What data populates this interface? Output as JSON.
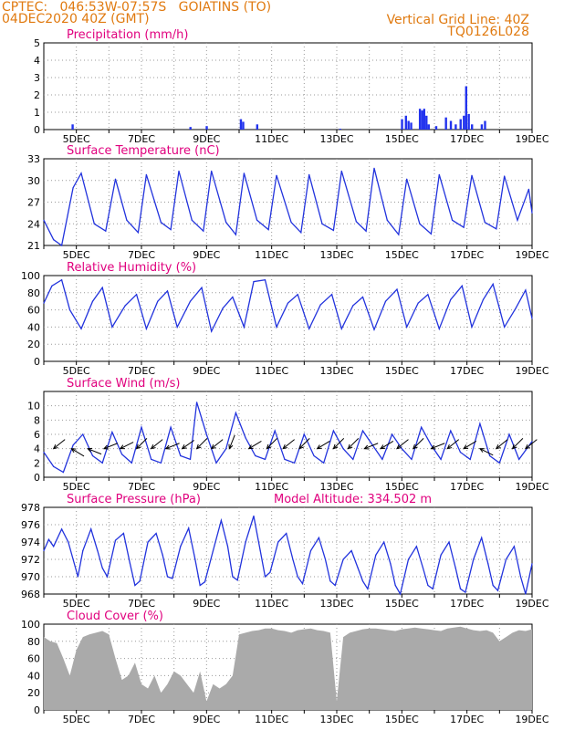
{
  "header": {
    "left_line1": "CPTEC:   046:53W-07:57S   GOIATINS (TO)",
    "left_line2": "04DEC2020 40Z (GMT)",
    "right_line1": "Vertical Grid Line: 40Z",
    "right_line2": "TQ0126L028"
  },
  "colors": {
    "header": "#e07a10",
    "panel_title": "#e0007e",
    "line": "#2233dd",
    "bars": "#2233ee",
    "cloud": "#aaaaaa",
    "grid": "#999999"
  },
  "x_axis": {
    "labels": [
      "5DEC",
      "7DEC",
      "9DEC",
      "11DEC",
      "13DEC",
      "15DEC",
      "17DEC",
      "19DEC"
    ]
  },
  "chart_data": [
    {
      "type": "bar",
      "title": "Precipitation (mm/h)",
      "ylim": [
        0,
        5
      ],
      "yticks": [
        0,
        1,
        2,
        3,
        4,
        5
      ],
      "x_days": [
        4.88,
        8.5,
        9.0,
        10.05,
        10.12,
        10.55,
        13.1,
        15.0,
        15.12,
        15.2,
        15.28,
        15.55,
        15.62,
        15.68,
        15.75,
        15.82,
        16.05,
        16.35,
        16.5,
        16.65,
        16.8,
        16.9,
        16.97,
        17.05,
        17.15,
        17.45,
        17.55
      ],
      "values": [
        0.3,
        0.15,
        0.2,
        0.6,
        0.45,
        0.3,
        0.05,
        0.6,
        0.8,
        0.5,
        0.4,
        1.2,
        1.1,
        1.2,
        0.8,
        0.3,
        0.2,
        0.7,
        0.5,
        0.3,
        0.6,
        0.8,
        2.5,
        0.9,
        0.3,
        0.3,
        0.5
      ]
    },
    {
      "type": "line",
      "title": "Surface Temperature (nC)",
      "ylim": [
        21,
        33
      ],
      "yticks": [
        21,
        24,
        27,
        30,
        33
      ],
      "x_days": [
        4.0,
        4.3,
        4.55,
        4.9,
        5.15,
        5.55,
        5.9,
        6.2,
        6.55,
        6.9,
        7.15,
        7.6,
        7.9,
        8.15,
        8.55,
        8.9,
        9.15,
        9.6,
        9.9,
        10.15,
        10.55,
        10.9,
        11.15,
        11.6,
        11.9,
        12.15,
        12.55,
        12.9,
        13.15,
        13.6,
        13.9,
        14.15,
        14.55,
        14.9,
        15.15,
        15.55,
        15.9,
        16.15,
        16.55,
        16.9,
        17.15,
        17.55,
        17.9,
        18.15,
        18.55,
        18.9,
        19.0
      ],
      "values": [
        24.5,
        21.8,
        21.0,
        29.0,
        31.0,
        24.0,
        23.0,
        30.2,
        24.5,
        22.8,
        30.8,
        24.2,
        23.2,
        31.3,
        24.5,
        23.0,
        31.3,
        24.2,
        22.5,
        31.0,
        24.5,
        23.2,
        30.7,
        24.2,
        22.8,
        30.8,
        24.0,
        23.1,
        31.3,
        24.3,
        23.0,
        31.7,
        24.5,
        22.5,
        30.2,
        24.0,
        22.6,
        30.8,
        24.5,
        23.5,
        30.7,
        24.2,
        23.3,
        30.6,
        24.5,
        28.8,
        25.5
      ]
    },
    {
      "type": "line",
      "title": "Relative Humidity (%)",
      "ylim": [
        0,
        100
      ],
      "yticks": [
        0,
        20,
        40,
        60,
        80,
        100
      ],
      "x_days": [
        4.0,
        4.25,
        4.55,
        4.8,
        5.15,
        5.5,
        5.8,
        6.1,
        6.5,
        6.85,
        7.15,
        7.5,
        7.8,
        8.1,
        8.5,
        8.85,
        9.15,
        9.5,
        9.8,
        10.15,
        10.45,
        10.8,
        11.15,
        11.5,
        11.8,
        12.15,
        12.5,
        12.85,
        13.15,
        13.5,
        13.8,
        14.15,
        14.5,
        14.85,
        15.15,
        15.5,
        15.8,
        16.15,
        16.5,
        16.85,
        17.15,
        17.5,
        17.8,
        18.15,
        18.5,
        18.8,
        19.0
      ],
      "values": [
        68,
        88,
        95,
        60,
        38,
        70,
        86,
        40,
        65,
        78,
        38,
        70,
        82,
        40,
        70,
        86,
        35,
        62,
        75,
        40,
        93,
        95,
        40,
        68,
        78,
        38,
        66,
        78,
        38,
        65,
        75,
        37,
        70,
        84,
        40,
        68,
        78,
        38,
        72,
        88,
        40,
        72,
        90,
        40,
        62,
        83,
        50
      ]
    },
    {
      "type": "line",
      "title": "Surface Wind (m/s)",
      "ylim": [
        0,
        12
      ],
      "yticks": [
        0,
        2,
        4,
        6,
        8,
        10
      ],
      "x_days": [
        4.0,
        4.3,
        4.6,
        4.9,
        5.2,
        5.5,
        5.8,
        6.1,
        6.4,
        6.7,
        7.0,
        7.3,
        7.6,
        7.9,
        8.2,
        8.5,
        8.7,
        9.0,
        9.3,
        9.6,
        9.9,
        10.2,
        10.5,
        10.8,
        11.1,
        11.4,
        11.7,
        12.0,
        12.3,
        12.6,
        12.9,
        13.2,
        13.5,
        13.8,
        14.1,
        14.4,
        14.7,
        15.0,
        15.3,
        15.6,
        15.9,
        16.2,
        16.5,
        16.8,
        17.1,
        17.4,
        17.7,
        18.0,
        18.3,
        18.6,
        19.0
      ],
      "values": [
        3.5,
        1.5,
        0.7,
        4.5,
        6.0,
        3.0,
        2.0,
        6.3,
        3.2,
        2.0,
        7.0,
        2.5,
        2.0,
        7.0,
        3.0,
        2.5,
        10.5,
        6.0,
        2.0,
        4.0,
        9.0,
        5.5,
        3.0,
        2.5,
        6.5,
        2.5,
        2.0,
        6.0,
        3.0,
        2.0,
        6.5,
        4.0,
        2.5,
        6.5,
        4.5,
        2.5,
        6.0,
        4.0,
        2.5,
        7.0,
        4.5,
        2.5,
        6.5,
        3.5,
        2.5,
        7.5,
        3.0,
        2.0,
        6.0,
        2.5,
        5.0
      ],
      "arrows": {
        "x_days": [
          4.3,
          4.85,
          5.35,
          5.85,
          6.35,
          6.85,
          7.3,
          7.75,
          8.25,
          8.7,
          9.15,
          9.7,
          10.3,
          10.85,
          11.35,
          11.85,
          12.4,
          12.9,
          13.35,
          13.85,
          14.35,
          14.85,
          15.35,
          15.9,
          16.4,
          16.9,
          17.4,
          17.9,
          18.4,
          18.8
        ],
        "u": [
          -1,
          -1,
          -1,
          -1,
          -1,
          -0.8,
          -1,
          -1,
          -1,
          -1,
          -1,
          -0.4,
          -1,
          -1,
          -1,
          -1,
          -1,
          -1,
          -1,
          -1,
          -1,
          -1,
          -1,
          -1,
          -1,
          -1,
          -1,
          -1,
          -1,
          -1
        ],
        "v": [
          -0.8,
          0.6,
          0.4,
          -0.4,
          -0.5,
          -0.8,
          -0.8,
          -0.4,
          -0.7,
          -1.0,
          -0.8,
          -1.0,
          -0.6,
          -1.0,
          -0.8,
          -1.0,
          -0.6,
          -1.0,
          -1.0,
          -0.4,
          -0.6,
          -0.8,
          -1.0,
          -0.4,
          -0.8,
          -0.6,
          0.5,
          -0.8,
          -1.0,
          -0.8
        ]
      }
    },
    {
      "type": "line",
      "title": "Surface Pressure (hPa)",
      "annotation": "Model Altitude: 334.502 m",
      "ylim": [
        968,
        978
      ],
      "yticks": [
        968,
        970,
        972,
        974,
        976,
        978
      ],
      "x_days": [
        4.0,
        4.15,
        4.3,
        4.55,
        4.75,
        4.9,
        5.05,
        5.2,
        5.45,
        5.65,
        5.8,
        5.95,
        6.2,
        6.45,
        6.65,
        6.8,
        6.95,
        7.2,
        7.45,
        7.65,
        7.8,
        7.95,
        8.2,
        8.45,
        8.65,
        8.8,
        8.95,
        9.2,
        9.45,
        9.65,
        9.8,
        9.95,
        10.2,
        10.45,
        10.65,
        10.8,
        10.95,
        11.2,
        11.45,
        11.65,
        11.8,
        11.95,
        12.2,
        12.45,
        12.65,
        12.8,
        12.95,
        13.2,
        13.45,
        13.65,
        13.8,
        13.95,
        14.2,
        14.45,
        14.65,
        14.8,
        14.95,
        15.2,
        15.45,
        15.65,
        15.8,
        15.95,
        16.2,
        16.45,
        16.65,
        16.8,
        16.95,
        17.2,
        17.45,
        17.65,
        17.8,
        17.95,
        18.2,
        18.45,
        18.65,
        18.8,
        19.0
      ],
      "values": [
        973.0,
        974.3,
        973.5,
        975.5,
        974.0,
        972.0,
        970.0,
        973.0,
        975.5,
        973.0,
        971.0,
        970.0,
        974.2,
        975.0,
        971.5,
        969.0,
        969.5,
        974.0,
        975.0,
        972.5,
        970.0,
        969.8,
        973.5,
        975.6,
        972.0,
        969.0,
        969.4,
        973.0,
        976.5,
        973.5,
        970.0,
        969.6,
        974.0,
        977.0,
        973.0,
        970.0,
        970.5,
        974.0,
        975.0,
        972.0,
        970.0,
        969.2,
        973.0,
        974.5,
        972.0,
        969.5,
        969.0,
        972.0,
        973.0,
        971.0,
        969.5,
        968.6,
        972.5,
        974.0,
        971.5,
        969.0,
        968.0,
        972.0,
        973.5,
        971.0,
        969.0,
        968.6,
        972.5,
        974.0,
        971.0,
        968.6,
        968.2,
        972.0,
        974.5,
        971.5,
        969.0,
        968.4,
        972.0,
        973.5,
        970.0,
        968.0,
        971.5
      ]
    },
    {
      "type": "area",
      "title": "Cloud Cover (%)",
      "ylim": [
        0,
        100
      ],
      "yticks": [
        0,
        20,
        40,
        60,
        80,
        100
      ],
      "x_days": [
        4.0,
        4.2,
        4.4,
        4.6,
        4.8,
        5.0,
        5.2,
        5.4,
        5.6,
        5.8,
        6.0,
        6.2,
        6.4,
        6.6,
        6.8,
        7.0,
        7.2,
        7.4,
        7.6,
        7.8,
        8.0,
        8.2,
        8.4,
        8.6,
        8.8,
        9.0,
        9.2,
        9.4,
        9.6,
        9.8,
        10.0,
        10.2,
        10.4,
        10.6,
        10.8,
        11.0,
        11.2,
        11.4,
        11.6,
        11.8,
        12.0,
        12.2,
        12.4,
        12.6,
        12.8,
        13.0,
        13.2,
        13.4,
        13.6,
        13.8,
        14.0,
        14.2,
        14.4,
        14.6,
        14.8,
        15.0,
        15.2,
        15.4,
        15.6,
        15.8,
        16.0,
        16.2,
        16.4,
        16.6,
        16.8,
        17.0,
        17.2,
        17.4,
        17.6,
        17.8,
        18.0,
        18.2,
        18.4,
        18.6,
        18.8,
        19.0
      ],
      "values": [
        85,
        80,
        78,
        60,
        40,
        70,
        85,
        88,
        90,
        92,
        88,
        60,
        35,
        40,
        55,
        30,
        25,
        40,
        20,
        30,
        45,
        40,
        30,
        20,
        45,
        10,
        30,
        25,
        30,
        40,
        88,
        90,
        92,
        93,
        95,
        95,
        93,
        92,
        90,
        93,
        94,
        95,
        93,
        92,
        90,
        10,
        85,
        90,
        92,
        94,
        95,
        95,
        94,
        93,
        92,
        94,
        95,
        96,
        95,
        94,
        93,
        92,
        95,
        96,
        97,
        95,
        93,
        92,
        93,
        90,
        80,
        85,
        90,
        93,
        92,
        94
      ]
    }
  ]
}
